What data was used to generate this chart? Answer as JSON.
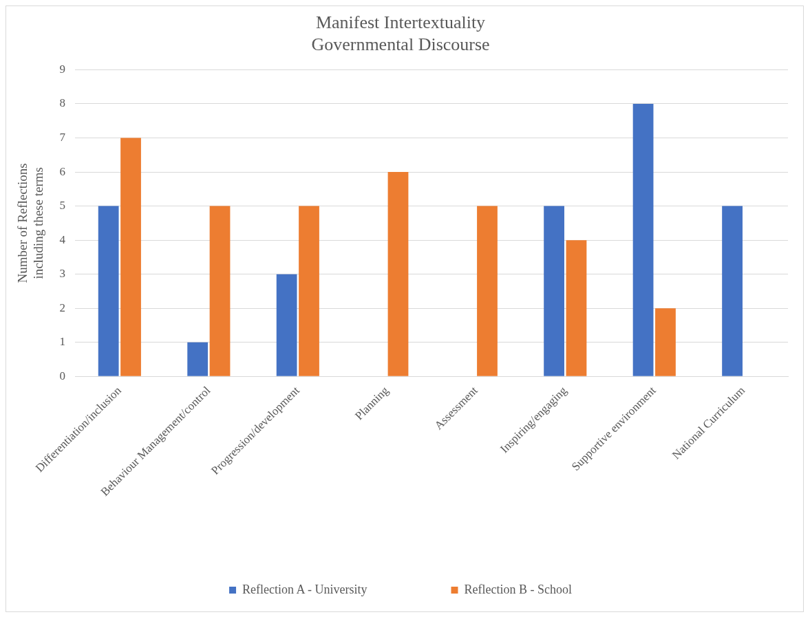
{
  "chart_data": {
    "type": "bar",
    "title": "Manifest Intertextuality\nGovernmental Discourse",
    "ylabel": "Number of Reflections\nincluding these terms",
    "categories": [
      "Differentiation/inclusion",
      "Behaviour Management/control",
      "Progression/development",
      "Planning",
      "Assessment",
      "Inspiring/engaging",
      "Supportive environment",
      "National Curriculum"
    ],
    "series": [
      {
        "name": "Reflection A - University",
        "color": "#4472c4",
        "values": [
          5,
          1,
          3,
          0,
          0,
          5,
          8,
          5
        ]
      },
      {
        "name": "Reflection B - School",
        "color": "#ed7d31",
        "values": [
          7,
          5,
          5,
          6,
          5,
          4,
          2,
          0
        ]
      }
    ],
    "ylim": [
      0,
      9
    ],
    "yticks": [
      0,
      1,
      2,
      3,
      4,
      5,
      6,
      7,
      8,
      9
    ],
    "grid": "y",
    "legend": "bottom"
  }
}
